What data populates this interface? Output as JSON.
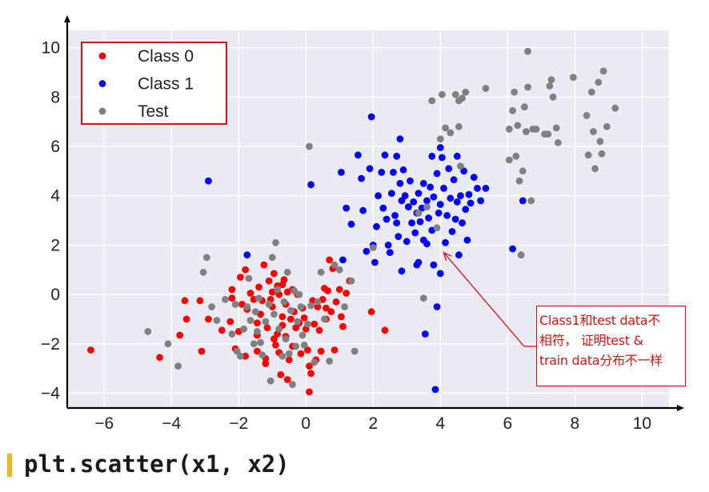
{
  "chart_data": {
    "type": "scatter",
    "xlim": [
      -7.1,
      10.8
    ],
    "ylim": [
      -4.6,
      10.7
    ],
    "xticks": [
      "−6",
      "−4",
      "−2",
      "0",
      "2",
      "4",
      "6",
      "8",
      "10"
    ],
    "xtick_values": [
      -6,
      -4,
      -2,
      0,
      2,
      4,
      6,
      8,
      10
    ],
    "yticks": [
      "−4",
      "−2",
      "0",
      "2",
      "4",
      "6",
      "8",
      "10"
    ],
    "ytick_values": [
      -4,
      -2,
      0,
      2,
      4,
      6,
      8,
      10
    ],
    "grid": true,
    "background": "#eaeaf2",
    "legend_position": "top-left",
    "series": [
      {
        "name": "Class 0",
        "color": "#ff0000",
        "points": [
          [
            -6.4,
            -2.25
          ],
          [
            -4.35,
            -2.55
          ],
          [
            -3.75,
            -1.65
          ],
          [
            -3.6,
            -0.25
          ],
          [
            -3.55,
            -1.0
          ],
          [
            -3.15,
            -0.25
          ],
          [
            -3.1,
            -2.3
          ],
          [
            -2.9,
            -1.0
          ],
          [
            -2.5,
            -1.45
          ],
          [
            -2.25,
            -1.1
          ],
          [
            -2.2,
            -0.15
          ],
          [
            -2.2,
            0.2
          ],
          [
            -2.1,
            -2.2
          ],
          [
            -2.0,
            -1.5
          ],
          [
            -1.95,
            0.7
          ],
          [
            -1.9,
            -0.4
          ],
          [
            -1.8,
            1.0
          ],
          [
            -1.8,
            -2.5
          ],
          [
            -1.75,
            -0.6
          ],
          [
            -1.65,
            0.05
          ],
          [
            -1.55,
            -0.2
          ],
          [
            -1.45,
            -1.15
          ],
          [
            -1.45,
            -1.65
          ],
          [
            -1.45,
            -2.3
          ],
          [
            -1.4,
            0.3
          ],
          [
            -1.35,
            -0.8
          ],
          [
            -1.3,
            -0.25
          ],
          [
            -1.25,
            1.2
          ],
          [
            -1.2,
            -2.6
          ],
          [
            -1.15,
            -1.35
          ],
          [
            -1.1,
            0.55
          ],
          [
            -1.05,
            -0.2
          ],
          [
            -1.0,
            0.1
          ],
          [
            -1.0,
            -0.5
          ],
          [
            -0.95,
            0.85
          ],
          [
            -0.95,
            -1.8
          ],
          [
            -0.9,
            -2.05
          ],
          [
            -0.85,
            0.35
          ],
          [
            -0.85,
            -1.6
          ],
          [
            -0.8,
            0.0
          ],
          [
            -0.8,
            -2.35
          ],
          [
            -0.75,
            -3.25
          ],
          [
            -0.7,
            0.4
          ],
          [
            -0.7,
            -1.25
          ],
          [
            -0.7,
            -0.9
          ],
          [
            -0.65,
            0.6
          ],
          [
            -0.6,
            -0.4
          ],
          [
            -0.6,
            -1.7
          ],
          [
            -0.55,
            0.1
          ],
          [
            -0.55,
            -3.45
          ],
          [
            -0.5,
            -2.65
          ],
          [
            -0.45,
            -1.0
          ],
          [
            -0.4,
            0.2
          ],
          [
            -0.4,
            -2.1
          ],
          [
            -0.35,
            -0.7
          ],
          [
            -0.3,
            -1.35
          ],
          [
            -0.25,
            0.0
          ],
          [
            -0.2,
            -1.15
          ],
          [
            -0.15,
            -2.4
          ],
          [
            -0.1,
            -0.55
          ],
          [
            -0.05,
            -0.95
          ],
          [
            0.0,
            -1.4
          ],
          [
            0.05,
            -2.25
          ],
          [
            0.1,
            -2.9
          ],
          [
            0.15,
            -3.2
          ],
          [
            0.2,
            -0.25
          ],
          [
            0.25,
            -1.2
          ],
          [
            0.3,
            -2.65
          ],
          [
            0.35,
            -0.5
          ],
          [
            0.4,
            -1.45
          ],
          [
            0.45,
            -2.3
          ],
          [
            0.5,
            -0.2
          ],
          [
            0.55,
            0.25
          ],
          [
            0.6,
            -1.0
          ],
          [
            0.65,
            0.15
          ],
          [
            0.7,
            1.4
          ],
          [
            0.75,
            -0.7
          ],
          [
            0.8,
            1.05
          ],
          [
            0.85,
            -2.25
          ],
          [
            0.9,
            -0.3
          ],
          [
            1.0,
            0.2
          ],
          [
            1.05,
            -0.9
          ],
          [
            1.1,
            -1.3
          ],
          [
            1.2,
            0.05
          ],
          [
            1.3,
            0.55
          ],
          [
            1.95,
            -0.7
          ],
          [
            2.35,
            -1.45
          ],
          [
            -1.2,
            -2.8
          ],
          [
            0.1,
            -3.95
          ],
          [
            0.6,
            -0.55
          ]
        ]
      },
      {
        "name": "Class 1",
        "color": "#0000ff",
        "points": [
          [
            -2.9,
            4.6
          ],
          [
            -1.75,
            1.6
          ],
          [
            0.15,
            4.45
          ],
          [
            1.05,
            4.95
          ],
          [
            1.1,
            1.4
          ],
          [
            1.2,
            3.5
          ],
          [
            1.35,
            2.85
          ],
          [
            1.55,
            5.65
          ],
          [
            1.65,
            4.7
          ],
          [
            1.7,
            3.4
          ],
          [
            1.8,
            1.75
          ],
          [
            1.9,
            5.1
          ],
          [
            1.95,
            7.2
          ],
          [
            2.0,
            2.0
          ],
          [
            2.05,
            1.3
          ],
          [
            2.1,
            2.75
          ],
          [
            2.15,
            4.0
          ],
          [
            2.25,
            4.95
          ],
          [
            2.3,
            3.5
          ],
          [
            2.35,
            5.65
          ],
          [
            2.4,
            3.05
          ],
          [
            2.45,
            2.0
          ],
          [
            2.5,
            1.7
          ],
          [
            2.55,
            4.1
          ],
          [
            2.6,
            4.95
          ],
          [
            2.65,
            3.2
          ],
          [
            2.7,
            5.6
          ],
          [
            2.75,
            2.35
          ],
          [
            2.8,
            6.3
          ],
          [
            2.8,
            4.5
          ],
          [
            2.85,
            3.8
          ],
          [
            2.85,
            0.95
          ],
          [
            2.9,
            5.05
          ],
          [
            2.95,
            4.0
          ],
          [
            3.0,
            2.15
          ],
          [
            3.05,
            3.55
          ],
          [
            3.1,
            4.6
          ],
          [
            3.15,
            2.9
          ],
          [
            3.2,
            3.75
          ],
          [
            3.25,
            2.5
          ],
          [
            3.3,
            3.3
          ],
          [
            3.35,
            4.1
          ],
          [
            3.35,
            1.3
          ],
          [
            3.4,
            2.95
          ],
          [
            3.45,
            3.5
          ],
          [
            3.5,
            4.5
          ],
          [
            3.5,
            2.2
          ],
          [
            3.55,
            -1.6
          ],
          [
            3.6,
            3.8
          ],
          [
            3.65,
            3.1
          ],
          [
            3.7,
            4.35
          ],
          [
            3.75,
            5.6
          ],
          [
            3.75,
            2.6
          ],
          [
            3.8,
            3.95
          ],
          [
            3.8,
            1.2
          ],
          [
            3.85,
            -3.85
          ],
          [
            3.9,
            4.9
          ],
          [
            3.9,
            -0.5
          ],
          [
            3.95,
            3.3
          ],
          [
            4.0,
            5.95
          ],
          [
            4.0,
            3.65
          ],
          [
            4.05,
            5.55
          ],
          [
            4.1,
            4.3
          ],
          [
            4.15,
            2.1
          ],
          [
            4.2,
            3.2
          ],
          [
            4.25,
            5.1
          ],
          [
            4.3,
            3.9
          ],
          [
            4.35,
            2.55
          ],
          [
            4.4,
            4.65
          ],
          [
            4.45,
            3.05
          ],
          [
            4.5,
            3.75
          ],
          [
            4.5,
            5.6
          ],
          [
            4.55,
            1.6
          ],
          [
            4.6,
            4.0
          ],
          [
            4.65,
            2.9
          ],
          [
            4.7,
            5.0
          ],
          [
            4.75,
            3.45
          ],
          [
            4.8,
            2.2
          ],
          [
            4.85,
            4.05
          ],
          [
            4.9,
            3.7
          ],
          [
            5.0,
            4.75
          ],
          [
            5.1,
            4.3
          ],
          [
            5.2,
            3.8
          ],
          [
            5.35,
            4.3
          ],
          [
            6.15,
            1.85
          ],
          [
            6.45,
            3.8
          ],
          [
            3.3,
            1.2
          ],
          [
            2.7,
            2.9
          ],
          [
            4.0,
            0.85
          ],
          [
            3.6,
            2.05
          ]
        ]
      },
      {
        "name": "Test",
        "color": "#808080",
        "points": [
          [
            -4.7,
            -1.5
          ],
          [
            -4.1,
            -2.0
          ],
          [
            -3.8,
            -2.9
          ],
          [
            -3.05,
            0.9
          ],
          [
            -2.95,
            1.5
          ],
          [
            -2.8,
            -0.5
          ],
          [
            -2.65,
            -1.05
          ],
          [
            -2.4,
            -0.2
          ],
          [
            -2.2,
            -1.6
          ],
          [
            -2.1,
            -0.4
          ],
          [
            -2.05,
            -2.3
          ],
          [
            -1.95,
            -2.5
          ],
          [
            -1.85,
            -1.4
          ],
          [
            -1.75,
            -0.5
          ],
          [
            -1.7,
            0.65
          ],
          [
            -1.65,
            -1.05
          ],
          [
            -1.55,
            -2.0
          ],
          [
            -1.5,
            -0.7
          ],
          [
            -1.45,
            -1.5
          ],
          [
            -1.4,
            -0.15
          ],
          [
            -1.35,
            -1.95
          ],
          [
            -1.3,
            -2.45
          ],
          [
            -1.2,
            -1.1
          ],
          [
            -1.1,
            -0.4
          ],
          [
            -1.05,
            -3.5
          ],
          [
            -1.0,
            1.5
          ],
          [
            -0.95,
            -0.8
          ],
          [
            -0.9,
            2.1
          ],
          [
            -0.85,
            0.2
          ],
          [
            -0.8,
            -1.4
          ],
          [
            -0.7,
            -2.5
          ],
          [
            -0.65,
            -0.3
          ],
          [
            -0.6,
            -1.8
          ],
          [
            -0.55,
            0.9
          ],
          [
            -0.5,
            -2.4
          ],
          [
            -0.45,
            -0.65
          ],
          [
            -0.4,
            -3.65
          ],
          [
            -0.35,
            0.15
          ],
          [
            -0.3,
            -2.1
          ],
          [
            -0.25,
            -1.1
          ],
          [
            -0.2,
            0.0
          ],
          [
            -0.15,
            -0.5
          ],
          [
            -0.1,
            -1.65
          ],
          [
            -0.05,
            -2.05
          ],
          [
            0.05,
            -1.2
          ],
          [
            0.1,
            6.0
          ],
          [
            0.15,
            -0.45
          ],
          [
            0.25,
            -2.75
          ],
          [
            0.35,
            -0.3
          ],
          [
            0.45,
            0.9
          ],
          [
            0.55,
            -1.0
          ],
          [
            0.7,
            -2.7
          ],
          [
            0.85,
            1.2
          ],
          [
            1.0,
            1.0
          ],
          [
            1.15,
            -0.5
          ],
          [
            1.35,
            0.55
          ],
          [
            1.45,
            -2.3
          ],
          [
            2.0,
            1.9
          ],
          [
            3.35,
            3.3
          ],
          [
            3.5,
            -0.15
          ],
          [
            3.6,
            3.55
          ],
          [
            3.75,
            7.85
          ],
          [
            3.9,
            2.7
          ],
          [
            4.0,
            6.3
          ],
          [
            4.05,
            8.1
          ],
          [
            4.15,
            6.75
          ],
          [
            4.3,
            6.55
          ],
          [
            4.45,
            8.1
          ],
          [
            4.55,
            6.8
          ],
          [
            4.55,
            7.85
          ],
          [
            4.6,
            5.2
          ],
          [
            4.65,
            7.95
          ],
          [
            4.75,
            8.2
          ],
          [
            5.35,
            8.35
          ],
          [
            6.05,
            6.7
          ],
          [
            6.05,
            5.45
          ],
          [
            6.15,
            7.45
          ],
          [
            6.2,
            8.2
          ],
          [
            6.25,
            5.6
          ],
          [
            6.3,
            6.85
          ],
          [
            6.35,
            4.6
          ],
          [
            6.4,
            1.6
          ],
          [
            6.45,
            5.0
          ],
          [
            6.5,
            7.6
          ],
          [
            6.55,
            6.6
          ],
          [
            6.6,
            9.85
          ],
          [
            6.6,
            8.4
          ],
          [
            6.7,
            3.8
          ],
          [
            6.75,
            6.7
          ],
          [
            6.85,
            6.7
          ],
          [
            7.1,
            6.5
          ],
          [
            7.2,
            6.5
          ],
          [
            7.25,
            8.45
          ],
          [
            7.3,
            8.7
          ],
          [
            7.35,
            8.0
          ],
          [
            7.45,
            6.75
          ],
          [
            7.5,
            6.15
          ],
          [
            7.95,
            8.8
          ],
          [
            8.35,
            7.25
          ],
          [
            8.4,
            5.65
          ],
          [
            8.5,
            8.2
          ],
          [
            8.55,
            6.6
          ],
          [
            8.6,
            5.1
          ],
          [
            8.7,
            8.6
          ],
          [
            8.75,
            6.2
          ],
          [
            8.8,
            5.7
          ],
          [
            8.85,
            9.05
          ],
          [
            8.95,
            6.8
          ],
          [
            9.2,
            7.55
          ]
        ]
      }
    ]
  },
  "annotation": {
    "text": "Class1和test data不\n相符， 证明test &\ntrain data分布不一样",
    "color": "#e01010",
    "arrow_target": [
      4.1,
      1.7
    ]
  },
  "code": {
    "text": "plt.scatter(x1, x2)",
    "accent_color": "#f2b324"
  }
}
